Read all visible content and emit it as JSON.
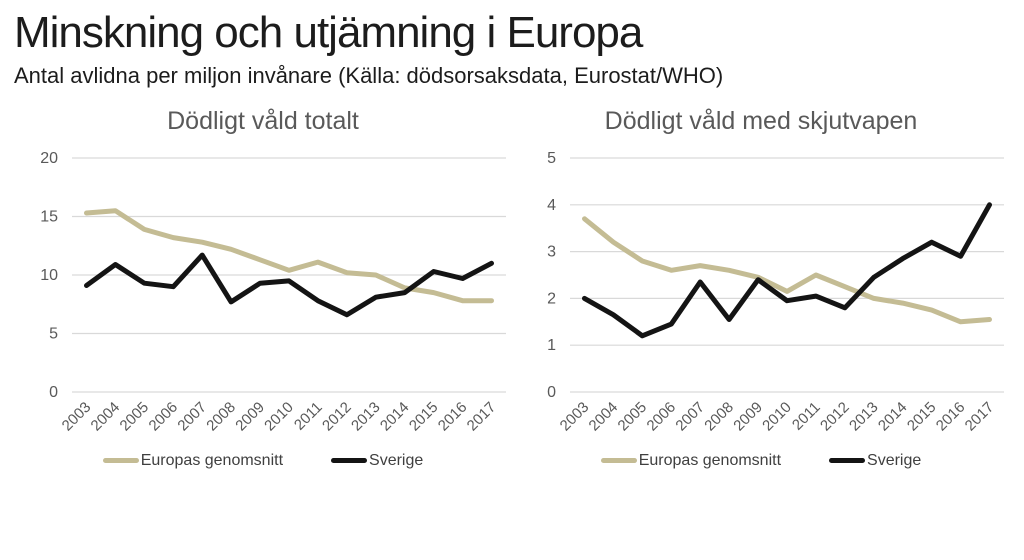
{
  "header": {
    "title": "Minskning och utjämning i Europa",
    "subtitle": "Antal avlidna per miljon invånare (Källa: dödsorsaksdata, Eurostat/WHO)"
  },
  "colors": {
    "europe_line": "#c4bc94",
    "sweden_line": "#141414",
    "gridline": "#d9d9d9",
    "axis_text": "#595959",
    "chart_title_text": "#595959",
    "legend_text": "#3f3f3f"
  },
  "chart_data": [
    {
      "type": "line",
      "title": "Dödligt våld totalt",
      "x": [
        "2003",
        "2004",
        "2005",
        "2006",
        "2007",
        "2008",
        "2009",
        "2010",
        "2011",
        "2012",
        "2013",
        "2014",
        "2015",
        "2016",
        "2017"
      ],
      "series": [
        {
          "name": "Europas genomsnitt",
          "color_key": "europe_line",
          "values": [
            15.3,
            15.5,
            13.9,
            13.2,
            12.8,
            12.2,
            11.3,
            10.4,
            11.1,
            10.2,
            10.0,
            8.9,
            8.5,
            7.8,
            7.8
          ]
        },
        {
          "name": "Sverige",
          "color_key": "sweden_line",
          "values": [
            9.1,
            10.9,
            9.3,
            9.0,
            11.7,
            7.7,
            9.3,
            9.5,
            7.8,
            6.6,
            8.1,
            8.5,
            10.3,
            9.7,
            11.0
          ]
        }
      ],
      "ylabel": "",
      "xlabel": "",
      "ylim": [
        0,
        20
      ],
      "yticks": [
        0,
        5,
        10,
        15,
        20
      ],
      "grid": true,
      "legend_position": "bottom"
    },
    {
      "type": "line",
      "title": "Dödligt våld med skjutvapen",
      "x": [
        "2003",
        "2004",
        "2005",
        "2006",
        "2007",
        "2008",
        "2009",
        "2010",
        "2011",
        "2012",
        "2013",
        "2014",
        "2015",
        "2016",
        "2017"
      ],
      "series": [
        {
          "name": "Europas genomsnitt",
          "color_key": "europe_line",
          "values": [
            3.7,
            3.2,
            2.8,
            2.6,
            2.7,
            2.6,
            2.45,
            2.15,
            2.5,
            2.25,
            2.0,
            1.9,
            1.75,
            1.5,
            1.55
          ]
        },
        {
          "name": "Sverige",
          "color_key": "sweden_line",
          "values": [
            2.0,
            1.65,
            1.2,
            1.45,
            2.35,
            1.55,
            2.4,
            1.95,
            2.05,
            1.8,
            2.45,
            2.85,
            3.2,
            2.9,
            4.0
          ]
        }
      ],
      "ylabel": "",
      "xlabel": "",
      "ylim": [
        0,
        5
      ],
      "yticks": [
        0,
        1,
        2,
        3,
        4,
        5
      ],
      "grid": true,
      "legend_position": "bottom"
    }
  ]
}
